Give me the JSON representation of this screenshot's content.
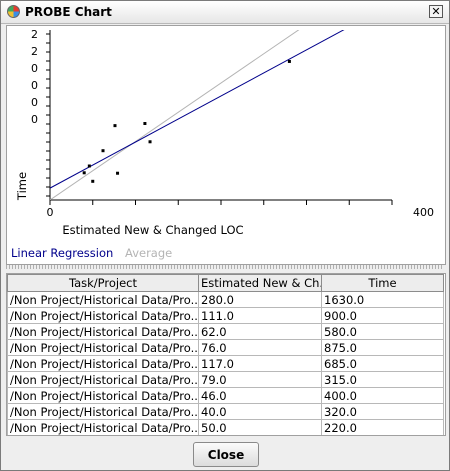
{
  "window": {
    "title": "PROBE Chart"
  },
  "chart_data": {
    "type": "scatter",
    "xlabel": "Estimated New & Changed LOC",
    "ylabel": "Time",
    "x_ticks": [
      "0",
      "400"
    ],
    "y_ticks": [
      "2",
      "2",
      "0",
      "0",
      "0",
      "0"
    ],
    "x_range": [
      0,
      400
    ],
    "legend": [
      {
        "label": "Linear Regression",
        "color": "#00008b"
      },
      {
        "label": "Average",
        "color": "#b4b4b4"
      }
    ],
    "points": [
      {
        "x": 280.0,
        "y": 1630.0
      },
      {
        "x": 111.0,
        "y": 900.0
      },
      {
        "x": 62.0,
        "y": 580.0
      },
      {
        "x": 76.0,
        "y": 875.0
      },
      {
        "x": 117.0,
        "y": 685.0
      },
      {
        "x": 79.0,
        "y": 315.0
      },
      {
        "x": 46.0,
        "y": 400.0
      },
      {
        "x": 40.0,
        "y": 320.0
      },
      {
        "x": 50.0,
        "y": 220.0
      }
    ]
  },
  "table": {
    "columns": [
      "Task/Project",
      "Estimated New & Ch...",
      "Time"
    ],
    "rows": [
      [
        "/Non Project/Historical Data/Pro...",
        "280.0",
        "1630.0"
      ],
      [
        "/Non Project/Historical Data/Pro...",
        "111.0",
        "900.0"
      ],
      [
        "/Non Project/Historical Data/Pro...",
        "62.0",
        "580.0"
      ],
      [
        "/Non Project/Historical Data/Pro...",
        "76.0",
        "875.0"
      ],
      [
        "/Non Project/Historical Data/Pro...",
        "117.0",
        "685.0"
      ],
      [
        "/Non Project/Historical Data/Pro...",
        "79.0",
        "315.0"
      ],
      [
        "/Non Project/Historical Data/Pro...",
        "46.0",
        "400.0"
      ],
      [
        "/Non Project/Historical Data/Pro...",
        "40.0",
        "320.0"
      ],
      [
        "/Non Project/Historical Data/Pro...",
        "50.0",
        "220.0"
      ]
    ]
  },
  "buttons": {
    "close": "Close"
  }
}
